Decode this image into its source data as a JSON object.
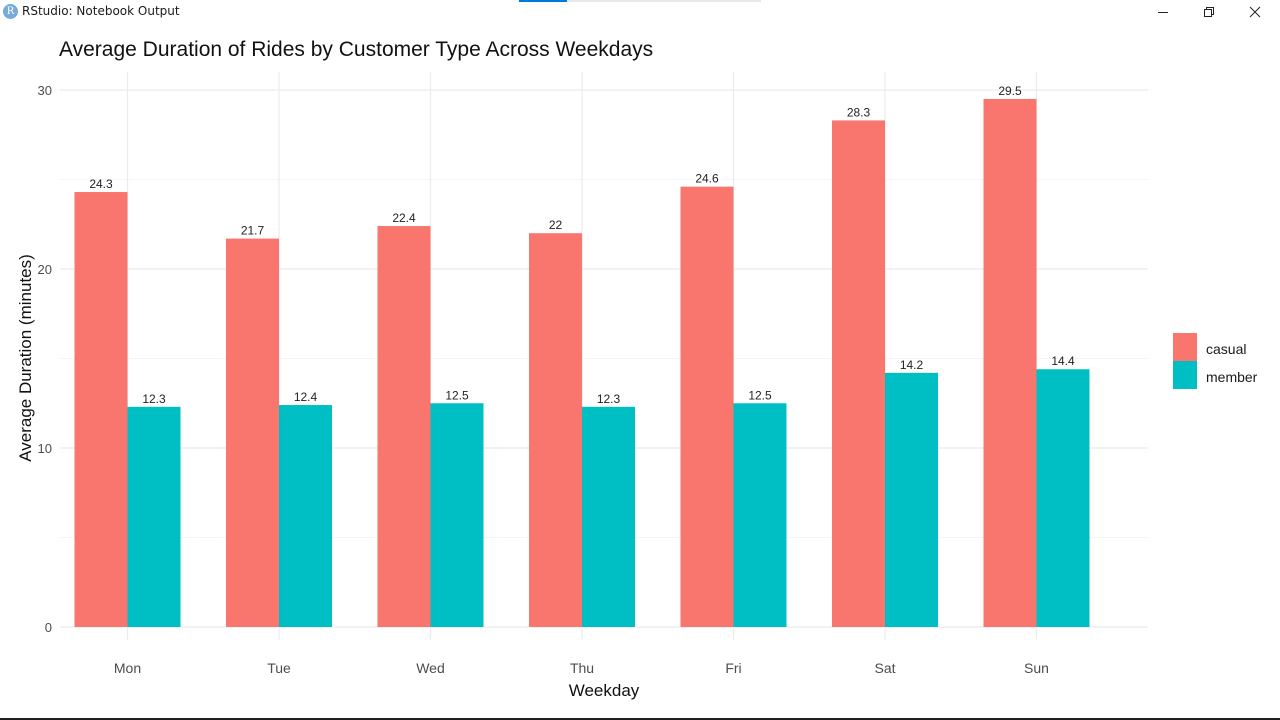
{
  "window": {
    "title": "RStudio: Notebook Output",
    "app_icon": "R",
    "controls": {
      "minimize_icon": "minimize-icon",
      "maximize_icon": "restore-icon",
      "close_icon": "close-icon"
    }
  },
  "chart_data": {
    "type": "bar",
    "title": "Average Duration of Rides by Customer Type Across Weekdays",
    "xlabel": "Weekday",
    "ylabel": "Average Duration (minutes)",
    "categories": [
      "Mon",
      "Tue",
      "Wed",
      "Thu",
      "Fri",
      "Sat",
      "Sun"
    ],
    "series": [
      {
        "name": "casual",
        "color": "#f8766d",
        "values": [
          24.3,
          21.7,
          22.4,
          22,
          24.6,
          28.3,
          29.5
        ]
      },
      {
        "name": "member",
        "color": "#00bfc4",
        "values": [
          12.3,
          12.4,
          12.5,
          12.3,
          12.5,
          14.2,
          14.4
        ]
      }
    ],
    "data_labels": [
      [
        "24.3",
        "21.7",
        "22.4",
        "22",
        "24.6",
        "28.3",
        "29.5"
      ],
      [
        "12.3",
        "12.4",
        "12.5",
        "12.3",
        "12.5",
        "14.2",
        "14.4"
      ]
    ],
    "yticks": [
      0,
      10,
      20,
      30
    ],
    "ytick_labels": [
      "0",
      "10",
      "20",
      "30"
    ],
    "ylim": [
      0,
      30
    ],
    "grid": true,
    "legend": "right",
    "colors": {
      "grid_major": "#ebebeb",
      "grid_minor": "#f5f5f5",
      "axis_text": "#4d4d4d"
    }
  }
}
